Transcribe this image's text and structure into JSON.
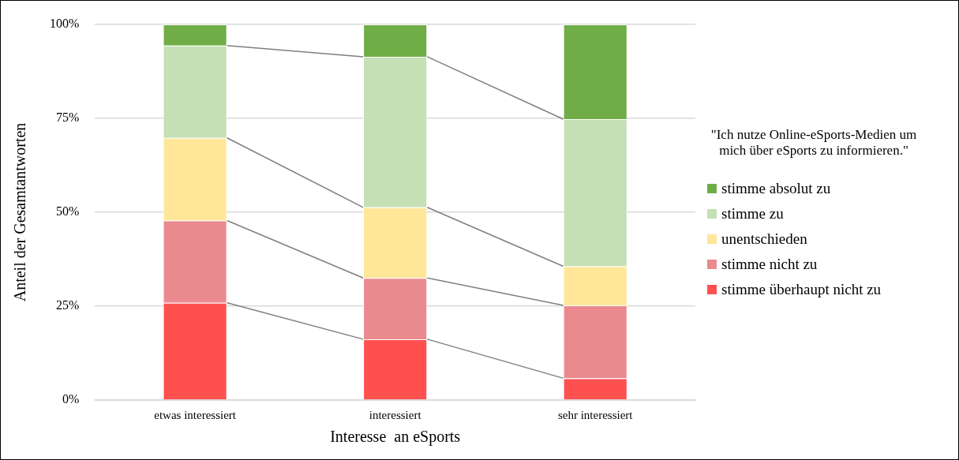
{
  "chart_data": {
    "type": "bar",
    "stacked": true,
    "xlabel": "Interesse  an eSports",
    "ylabel": "Anteil der Gesamtantworten",
    "legend_title": "\"Ich nutze Online-eSports-Medien um mich über eSports zu informieren.\"",
    "categories": [
      "etwas interessiert",
      "interessiert",
      "sehr interessiert"
    ],
    "series": [
      {
        "name": "stimme überhaupt nicht zu",
        "color": "#ff5050",
        "values": [
          25.9,
          16.2,
          5.8
        ]
      },
      {
        "name": "stimme nicht zu",
        "color": "#ea8a8f",
        "values": [
          21.9,
          16.3,
          19.4
        ]
      },
      {
        "name": "unentschieden",
        "color": "#ffe699",
        "values": [
          22.0,
          18.8,
          10.4
        ]
      },
      {
        "name": "stimme zu",
        "color": "#c5e0b4",
        "values": [
          24.6,
          40.1,
          39.2
        ]
      },
      {
        "name": "stimme absolut zu",
        "color": "#70ad47",
        "values": [
          5.6,
          8.6,
          25.2
        ]
      }
    ],
    "ylim": [
      0,
      100
    ],
    "yticks": [
      {
        "value": 0,
        "label": "0%"
      },
      {
        "value": 25,
        "label": "25%"
      },
      {
        "value": 50,
        "label": "50%"
      },
      {
        "value": 75,
        "label": "75%"
      },
      {
        "value": 100,
        "label": "100%"
      }
    ],
    "grid": "y",
    "legend": "right"
  }
}
